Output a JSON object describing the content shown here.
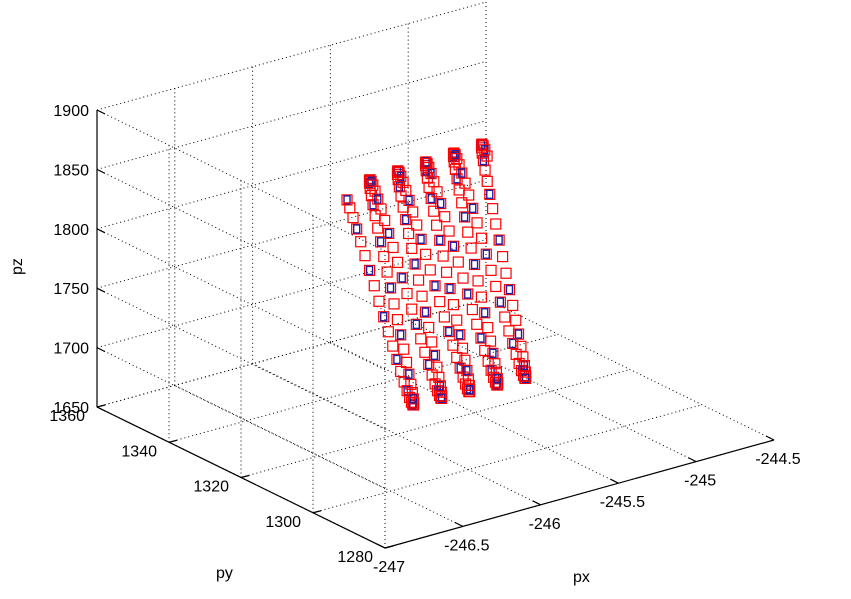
{
  "chart_data": {
    "type": "scatter3d",
    "xlabel": "px",
    "ylabel": "py",
    "zlabel": "pz",
    "xlim": [
      -247,
      -244.5
    ],
    "ylim": [
      1280,
      1360
    ],
    "zlim": [
      1650,
      1900
    ],
    "x_ticks": [
      "-247",
      "-246.5",
      "-246",
      "-245.5",
      "-245",
      "-244.5"
    ],
    "y_ticks": [
      "1280",
      "1300",
      "1320",
      "1340",
      "1360"
    ],
    "z_ticks": [
      "1650",
      "1700",
      "1750",
      "1800",
      "1850",
      "1900"
    ],
    "grid": true,
    "marker": "square",
    "series": [
      {
        "color": "#ff0000",
        "helix": {
          "turns": 5,
          "x_start": -246.2,
          "x_end": -245.3,
          "y_center": 1318,
          "y_amplitude": 8,
          "z_start": 1800,
          "z_center": 1775,
          "z_amplitude_start": 85,
          "z_amplitude_end": 90,
          "z_end": 1730
        }
      }
    ],
    "overlay_color": "#2020a0"
  }
}
